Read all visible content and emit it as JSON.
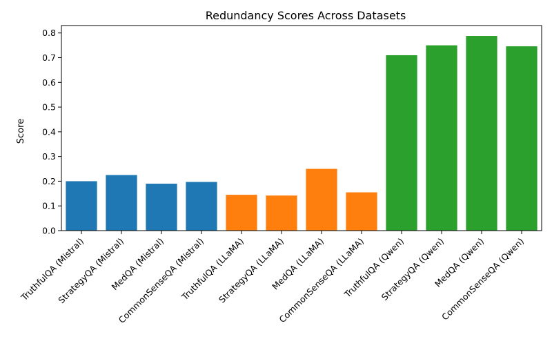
{
  "chart_data": {
    "type": "bar",
    "title": "Redundancy Scores Across Datasets",
    "xlabel": "",
    "ylabel": "Score",
    "ylim": [
      0,
      0.83
    ],
    "yticks": [
      "0.0",
      "0.1",
      "0.2",
      "0.3",
      "0.4",
      "0.5",
      "0.6",
      "0.7",
      "0.8"
    ],
    "grid": false,
    "categories": [
      "TruthfulQA (Mistral)",
      "StrategyQA (Mistral)",
      "MedQA (Mistral)",
      "CommonSenseQA (Mistral)",
      "TruthfulQA (LLaMA)",
      "StrategyQA (LLaMA)",
      "MedQA (LLaMA)",
      "CommonSenseQA (LLaMA)",
      "TruthfulQA (Qwen)",
      "StrategyQA (Qwen)",
      "MedQA (Qwen)",
      "CommonSenseQA (Qwen)"
    ],
    "values": [
      0.2,
      0.225,
      0.19,
      0.197,
      0.145,
      0.142,
      0.25,
      0.155,
      0.71,
      0.75,
      0.788,
      0.746
    ],
    "colors": [
      "#1f77b4",
      "#1f77b4",
      "#1f77b4",
      "#1f77b4",
      "#ff7f0e",
      "#ff7f0e",
      "#ff7f0e",
      "#ff7f0e",
      "#2ca02c",
      "#2ca02c",
      "#2ca02c",
      "#2ca02c"
    ]
  }
}
